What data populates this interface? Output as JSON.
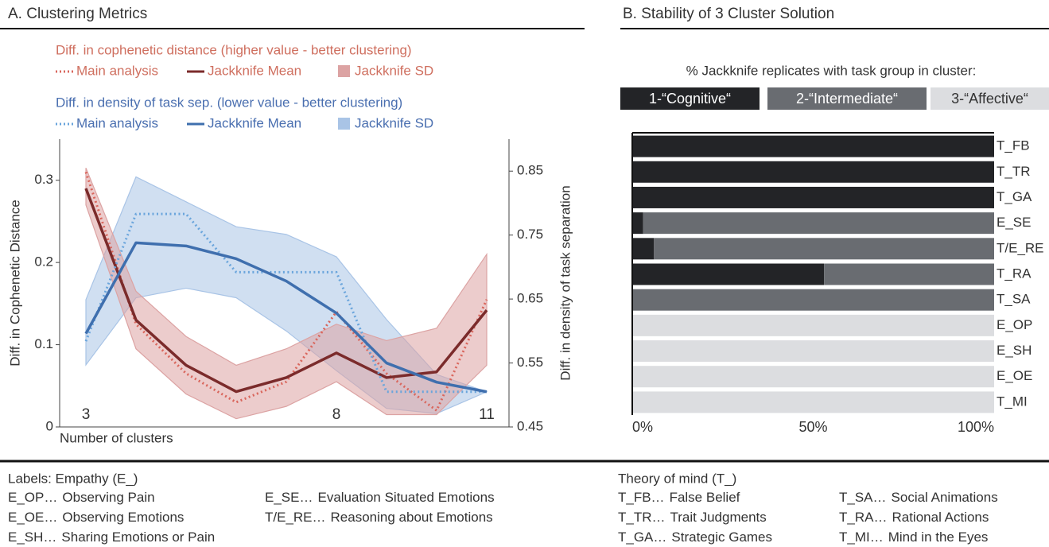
{
  "chart_data": [
    {
      "type": "line",
      "title": "A. Clustering Metrics",
      "xlabel": "Number of clusters",
      "ylabel": "Diff. in Cophenetic Distance",
      "y2label": "Diff. in density of task separation",
      "x": [
        3,
        4,
        5,
        6,
        7,
        8,
        9,
        10,
        11
      ],
      "xlim": [
        3,
        11
      ],
      "xticks": [
        3,
        8,
        11
      ],
      "ylim": [
        0,
        0.35
      ],
      "yticks": [
        0,
        0.1,
        0.2,
        0.3
      ],
      "y2lim": [
        0.45,
        0.9
      ],
      "y2ticks": [
        0.45,
        0.55,
        0.65,
        0.75,
        0.85
      ],
      "groups": [
        {
          "title": "Diff. in cophenetic distance (higher value - better clustering)",
          "color": "#cf6f5f",
          "axis": "y",
          "series": [
            {
              "name": "Main analysis",
              "color": "#d9665c",
              "style": "dotted",
              "values": [
                0.31,
                0.125,
                0.065,
                0.03,
                0.055,
                0.14,
                0.065,
                0.02,
                0.155
              ]
            },
            {
              "name": "Jackknife Mean",
              "color": "#7b2b2b",
              "style": "solid",
              "values": [
                0.29,
                0.13,
                0.075,
                0.043,
                0.06,
                0.09,
                0.06,
                0.067,
                0.142
              ]
            },
            {
              "name": "Jackknife SD",
              "color": "#dca3a3",
              "style": "band",
              "lower": [
                0.27,
                0.095,
                0.04,
                0.01,
                0.025,
                0.055,
                0.015,
                0.015,
                0.075
              ],
              "upper": [
                0.315,
                0.165,
                0.11,
                0.075,
                0.095,
                0.125,
                0.105,
                0.12,
                0.21
              ]
            }
          ]
        },
        {
          "title": "Diff. in density of task sep. (lower value - better clustering)",
          "color": "#4a6fb0",
          "axis": "y2",
          "series": [
            {
              "name": "Main analysis",
              "color": "#6aa5dc",
              "style": "dotted",
              "values": [
                0.584,
                0.783,
                0.783,
                0.692,
                0.692,
                0.692,
                0.505,
                0.505,
                0.505
              ]
            },
            {
              "name": "Jackknife Mean",
              "color": "#3f6fae",
              "style": "solid",
              "values": [
                0.596,
                0.738,
                0.733,
                0.713,
                0.678,
                0.628,
                0.55,
                0.52,
                0.505
              ]
            },
            {
              "name": "Jackknife SD",
              "color": "#a9c4e6",
              "style": "band",
              "lower": [
                0.547,
                0.652,
                0.667,
                0.652,
                0.6,
                0.538,
                0.479,
                0.471,
                0.505
              ],
              "upper": [
                0.649,
                0.841,
                0.802,
                0.763,
                0.751,
                0.716,
                0.618,
                0.532,
                0.505
              ]
            }
          ]
        }
      ]
    },
    {
      "type": "bar",
      "orientation": "horizontal",
      "stacked": true,
      "title": "B. Stability of 3 Cluster Solution",
      "subtitle": "% Jackknife replicates with task group in cluster:",
      "categories": [
        "T_FB",
        "T_TR",
        "T_GA",
        "E_SE",
        "T/E_RE",
        "T_RA",
        "T_SA",
        "E_OP",
        "E_SH",
        "E_OE",
        "T_MI"
      ],
      "xlim": [
        0,
        100
      ],
      "xticks": [
        {
          "value": 0,
          "label": "0%"
        },
        {
          "value": 50,
          "label": "50%"
        },
        {
          "value": 100,
          "label": "100%"
        }
      ],
      "series": [
        {
          "name": "1-“Cognitive“",
          "color": "#232427",
          "text_color": "#ffffff",
          "values": [
            100,
            100,
            100,
            3,
            6,
            53,
            0,
            0,
            0,
            0,
            0
          ]
        },
        {
          "name": "2-“Intermediate“",
          "color": "#696c71",
          "text_color": "#ffffff",
          "values": [
            0,
            0,
            0,
            97,
            94,
            47,
            100,
            0,
            0,
            0,
            0
          ]
        },
        {
          "name": "3-“Affective“",
          "color": "#dcdde0",
          "text_color": "#333333",
          "values": [
            0,
            0,
            0,
            0,
            0,
            0,
            0,
            100,
            100,
            100,
            100
          ]
        }
      ]
    }
  ],
  "labels": {
    "empathy": {
      "title": "Labels: Empathy (E_)",
      "columns": [
        [
          {
            "code": "E_OP…",
            "text": "Observing Pain"
          },
          {
            "code": "E_OE…",
            "text": "Observing Emotions"
          },
          {
            "code": "E_SH…",
            "text": "Sharing Emotions or Pain"
          }
        ],
        [
          {
            "code": "E_SE…",
            "text": "Evaluation Situated Emotions"
          },
          {
            "code": "T/E_RE…",
            "text": "Reasoning about Emotions"
          }
        ]
      ]
    },
    "theory_of_mind": {
      "title": "Theory of mind (T_)",
      "columns": [
        [
          {
            "code": "T_FB…",
            "text": "False Belief"
          },
          {
            "code": "T_TR…",
            "text": "Trait Judgments"
          },
          {
            "code": "T_GA…",
            "text": "Strategic Games"
          }
        ],
        [
          {
            "code": "T_SA…",
            "text": "Social Animations"
          },
          {
            "code": "T_RA…",
            "text": "Rational Actions"
          },
          {
            "code": "T_MI…",
            "text": "Mind in the Eyes"
          }
        ]
      ]
    }
  }
}
